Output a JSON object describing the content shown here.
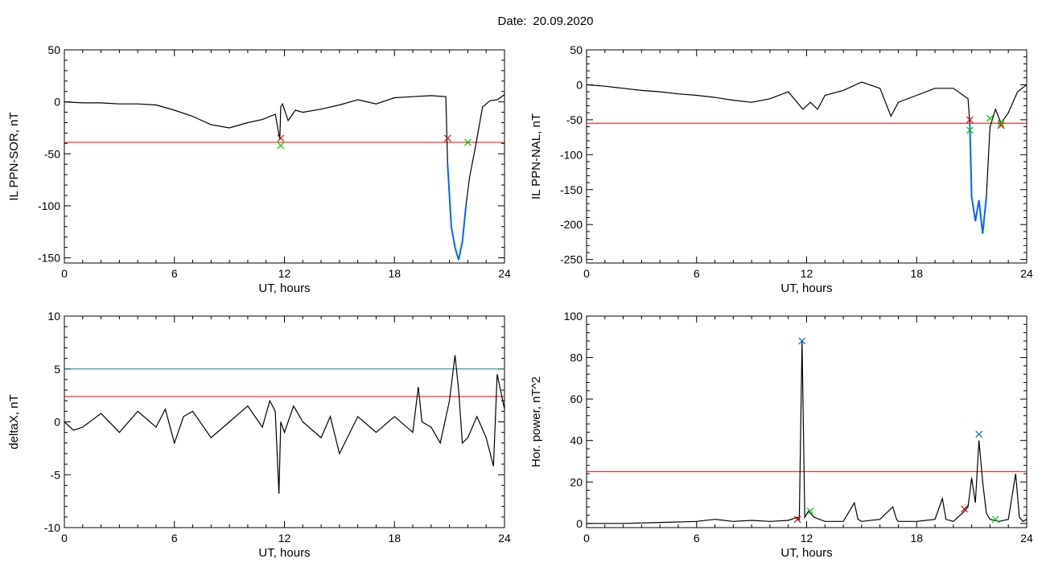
{
  "header": {
    "date_label": "Date:",
    "date_value": "20.09.2020"
  },
  "colors": {
    "trace": "#000000",
    "threshold": "#ff0000",
    "threshold2": "#008b8b",
    "highlight": "#0066ff",
    "start_marker": "#cc0000",
    "end_marker": "#00cc00"
  },
  "chart_data": [
    {
      "type": "line",
      "ylabel": "IL PPN-SOR, nT",
      "xlabel": "UT, hours",
      "xlim": [
        0,
        24
      ],
      "ylim": [
        -155,
        50
      ],
      "xticks": [
        0,
        6,
        12,
        18,
        24
      ],
      "yticks": [
        50,
        0,
        -50,
        -100,
        -150
      ],
      "grid": false,
      "thresholds": [
        {
          "value": -39,
          "color": "red"
        }
      ],
      "series": [
        {
          "x": [
            0,
            1,
            2,
            3,
            4,
            5,
            6,
            7,
            8,
            9,
            10,
            10.8,
            11.5,
            11.75,
            11.8,
            11.9,
            12.2,
            12.6,
            13,
            14,
            15,
            16,
            17,
            18,
            19,
            20,
            20.8,
            20.9,
            21.1,
            21.3,
            21.5,
            21.7,
            21.9,
            22.1,
            22.4,
            22.8,
            23.2,
            23.6,
            24
          ],
          "y": [
            0,
            -1,
            -1,
            -2,
            -2,
            -3,
            -8,
            -14,
            -22,
            -25,
            -20,
            -17,
            -12,
            -36,
            -5,
            -2,
            -18,
            -8,
            -10,
            -7,
            -3,
            2,
            -2,
            4,
            5,
            6,
            5,
            -60,
            -120,
            -140,
            -152,
            -135,
            -100,
            -72,
            -45,
            -5,
            1,
            2,
            7
          ]
        }
      ],
      "highlights": [
        {
          "from": 20.9,
          "to": 22.0,
          "color": "blue"
        }
      ],
      "markers": [
        {
          "x": 11.8,
          "y": -35,
          "kind": "start"
        },
        {
          "x": 11.8,
          "y": -42,
          "kind": "end"
        },
        {
          "x": 20.9,
          "y": -35,
          "kind": "start"
        },
        {
          "x": 22.0,
          "y": -39,
          "kind": "end"
        }
      ]
    },
    {
      "type": "line",
      "ylabel": "IL PPN-NAL, nT",
      "xlabel": "UT, hours",
      "xlim": [
        0,
        24
      ],
      "ylim": [
        -255,
        50
      ],
      "xticks": [
        0,
        6,
        12,
        18,
        24
      ],
      "yticks": [
        50,
        0,
        -50,
        -100,
        -150,
        -200,
        -250
      ],
      "grid": false,
      "thresholds": [
        {
          "value": -55,
          "color": "red"
        }
      ],
      "series": [
        {
          "x": [
            0,
            1,
            2,
            3,
            4,
            5,
            6,
            7,
            8,
            9,
            10,
            11,
            11.8,
            12.2,
            12.6,
            13,
            14,
            15,
            16,
            16.6,
            17,
            18,
            19,
            20,
            20.8,
            20.9,
            21,
            21.2,
            21.4,
            21.6,
            21.8,
            22,
            22.3,
            22.6,
            23,
            23.5,
            24
          ],
          "y": [
            0,
            -2,
            -5,
            -8,
            -10,
            -13,
            -15,
            -18,
            -22,
            -25,
            -20,
            -10,
            -35,
            -25,
            -35,
            -15,
            -8,
            4,
            -5,
            -45,
            -25,
            -15,
            -5,
            -5,
            -20,
            -55,
            -160,
            -195,
            -165,
            -213,
            -160,
            -60,
            -35,
            -55,
            -40,
            -10,
            0
          ]
        }
      ],
      "highlights": [
        {
          "from": 20.9,
          "to": 21.8,
          "color": "blue"
        }
      ],
      "markers": [
        {
          "x": 20.9,
          "y": -50,
          "kind": "start"
        },
        {
          "x": 20.9,
          "y": -65,
          "kind": "end"
        },
        {
          "x": 22.0,
          "y": -48,
          "kind": "end"
        },
        {
          "x": 22.6,
          "y": -58,
          "kind": "start"
        },
        {
          "x": 22.6,
          "y": -55,
          "kind": "end"
        }
      ]
    },
    {
      "type": "line",
      "ylabel": "deltaX, nT",
      "xlabel": "UT, hours",
      "xlim": [
        0,
        24
      ],
      "ylim": [
        -10,
        10
      ],
      "xticks": [
        0,
        6,
        12,
        18,
        24
      ],
      "yticks": [
        10,
        5,
        0,
        -5,
        -10
      ],
      "grid": false,
      "thresholds": [
        {
          "value": 5,
          "color": "teal"
        },
        {
          "value": 2.4,
          "color": "red"
        }
      ],
      "series": [
        {
          "x": [
            0,
            0.5,
            1,
            2,
            3,
            4,
            5,
            5.5,
            6,
            6.5,
            7,
            8,
            9,
            10,
            10.8,
            11.2,
            11.5,
            11.7,
            11.8,
            12,
            12.5,
            13,
            14,
            14.5,
            15,
            16,
            17,
            18,
            19,
            19.3,
            19.5,
            20,
            20.5,
            21,
            21.3,
            21.5,
            21.7,
            22,
            22.5,
            23,
            23.4,
            23.6,
            24
          ],
          "y": [
            0,
            -0.8,
            -0.5,
            0.8,
            -1,
            1,
            -0.5,
            1.2,
            -2,
            0.5,
            1,
            -1.5,
            0,
            1.5,
            -0.5,
            2,
            1,
            -6.8,
            0,
            -1,
            1.5,
            0,
            -1.5,
            0.5,
            -3,
            0.5,
            -1,
            0.5,
            -1,
            3.3,
            0,
            -0.5,
            -2,
            2,
            6.3,
            3,
            -2,
            -1.5,
            0.5,
            -1.5,
            -4.2,
            4.5,
            1.2
          ]
        }
      ],
      "highlights": [],
      "markers": []
    },
    {
      "type": "line",
      "ylabel": "Hor. power, nT^2",
      "xlabel": "UT, hours",
      "xlim": [
        0,
        24
      ],
      "ylim": [
        -2,
        100
      ],
      "xticks": [
        0,
        6,
        12,
        18,
        24
      ],
      "yticks": [
        100,
        80,
        60,
        40,
        20,
        0
      ],
      "grid": false,
      "thresholds": [
        {
          "value": 25,
          "color": "red"
        }
      ],
      "series": [
        {
          "x": [
            0,
            2,
            4,
            6,
            7,
            8,
            9,
            10,
            11,
            11.5,
            11.6,
            11.75,
            11.9,
            12.1,
            12.4,
            13,
            14,
            14.6,
            14.8,
            15,
            16,
            16.7,
            16.9,
            17,
            18,
            19,
            19.4,
            19.6,
            20,
            20.5,
            20.8,
            21,
            21.2,
            21.4,
            21.6,
            21.8,
            22,
            22.5,
            23,
            23.4,
            23.6,
            23.8,
            24
          ],
          "y": [
            0,
            0,
            0.5,
            1,
            2,
            1,
            1.5,
            1,
            1.5,
            3,
            2,
            88,
            3,
            6,
            3,
            1,
            1,
            10,
            2,
            1,
            2,
            8,
            2,
            1,
            1,
            2,
            12,
            2,
            1,
            5,
            8,
            22,
            10,
            40,
            20,
            5,
            2,
            1,
            2,
            24,
            3,
            1,
            2
          ]
        }
      ],
      "highlights": [],
      "markers": [
        {
          "x": 11.75,
          "y": 88,
          "kind": "peak"
        },
        {
          "x": 21.4,
          "y": 43,
          "kind": "peak"
        },
        {
          "x": 11.5,
          "y": 2,
          "kind": "start"
        },
        {
          "x": 12.2,
          "y": 6,
          "kind": "end"
        },
        {
          "x": 20.6,
          "y": 7,
          "kind": "start"
        },
        {
          "x": 22.3,
          "y": 2,
          "kind": "end"
        }
      ]
    }
  ]
}
